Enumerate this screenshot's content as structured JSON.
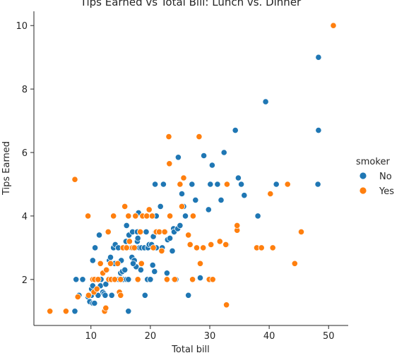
{
  "chart_data": {
    "type": "scatter",
    "title": "Tips Earned vs Total Bill: Lunch vs. Dinner",
    "xlabel": "Total bill",
    "ylabel": "Tips Earned",
    "xlim": [
      0.4,
      53.3
    ],
    "ylim": [
      0.55,
      10.45
    ],
    "xticks": [
      10,
      20,
      30,
      40,
      50
    ],
    "yticks": [
      2,
      4,
      6,
      8,
      10
    ],
    "grid": false,
    "legend": {
      "title": "smoker",
      "placement": "right"
    },
    "series": [
      {
        "name": "No",
        "color": "#1f77b4",
        "points": [
          [
            7.5,
            2.0
          ],
          [
            8.0,
            1.5
          ],
          [
            8.6,
            2.0
          ],
          [
            9.5,
            1.45
          ],
          [
            9.8,
            1.3
          ],
          [
            10.1,
            1.5
          ],
          [
            10.1,
            1.7
          ],
          [
            10.3,
            1.25
          ],
          [
            10.3,
            1.8
          ],
          [
            10.3,
            2.6
          ],
          [
            10.6,
            1.25
          ],
          [
            10.8,
            2.0
          ],
          [
            11.2,
            1.5
          ],
          [
            11.6,
            1.8
          ],
          [
            11.7,
            2.0
          ],
          [
            12.0,
            1.6
          ],
          [
            12.2,
            1.55
          ],
          [
            12.4,
            1.5
          ],
          [
            12.5,
            1.85
          ],
          [
            12.7,
            2.3
          ],
          [
            13.0,
            2.0
          ],
          [
            13.1,
            2.6
          ],
          [
            13.3,
            2.5
          ],
          [
            13.3,
            2.7
          ],
          [
            13.4,
            2.0
          ],
          [
            13.5,
            1.5
          ],
          [
            13.8,
            3.0
          ],
          [
            14.0,
            2.5
          ],
          [
            14.1,
            3.1
          ],
          [
            14.5,
            2.0
          ],
          [
            14.6,
            3.0
          ],
          [
            14.7,
            2.0
          ],
          [
            15.0,
            2.2
          ],
          [
            15.1,
            2.6
          ],
          [
            15.3,
            2.25
          ],
          [
            15.4,
            2.0
          ],
          [
            15.5,
            3.0
          ],
          [
            15.7,
            2.3
          ],
          [
            15.9,
            3.2
          ],
          [
            16.0,
            2.0
          ],
          [
            16.0,
            3.7
          ],
          [
            16.3,
            2.0
          ],
          [
            16.4,
            3.4
          ],
          [
            16.8,
            3.0
          ],
          [
            16.9,
            2.7
          ],
          [
            17.0,
            3.5
          ],
          [
            17.3,
            2.6
          ],
          [
            17.5,
            3.0
          ],
          [
            17.6,
            2.4
          ],
          [
            17.8,
            3.2
          ],
          [
            17.9,
            3.3
          ],
          [
            18.0,
            4.1
          ],
          [
            18.2,
            3.0
          ],
          [
            18.3,
            3.5
          ],
          [
            18.4,
            2.3
          ],
          [
            18.5,
            3.0
          ],
          [
            18.7,
            4.0
          ],
          [
            19.0,
            3.0
          ],
          [
            19.1,
            1.5
          ],
          [
            19.3,
            3.5
          ],
          [
            19.5,
            2.0
          ],
          [
            19.6,
            3.0
          ],
          [
            19.8,
            3.1
          ],
          [
            20.0,
            2.0
          ],
          [
            20.2,
            3.1
          ],
          [
            20.3,
            4.0
          ],
          [
            20.4,
            2.45
          ],
          [
            20.5,
            3.35
          ],
          [
            20.7,
            2.25
          ],
          [
            20.8,
            5.0
          ],
          [
            20.9,
            3.5
          ],
          [
            21.0,
            3.0
          ],
          [
            21.5,
            3.5
          ],
          [
            21.7,
            4.3
          ],
          [
            22.0,
            3.0
          ],
          [
            22.2,
            5.0
          ],
          [
            22.5,
            3.5
          ],
          [
            22.8,
            2.2
          ],
          [
            22.9,
            3.25
          ],
          [
            23.3,
            3.3
          ],
          [
            23.7,
            2.9
          ],
          [
            23.9,
            3.6
          ],
          [
            24.0,
            3.5
          ],
          [
            24.3,
            2.0
          ],
          [
            24.6,
            3.6
          ],
          [
            24.7,
            5.85
          ],
          [
            25.0,
            3.7
          ],
          [
            25.3,
            4.7
          ],
          [
            25.6,
            4.3
          ],
          [
            25.9,
            4.0
          ],
          [
            26.4,
            1.5
          ],
          [
            27.0,
            5.0
          ],
          [
            27.6,
            4.5
          ],
          [
            28.4,
            2.05
          ],
          [
            29.0,
            5.9
          ],
          [
            29.8,
            4.2
          ],
          [
            30.1,
            5.0
          ],
          [
            30.4,
            5.6
          ],
          [
            31.3,
            5.0
          ],
          [
            31.9,
            4.5
          ],
          [
            32.4,
            6.0
          ],
          [
            32.8,
            3.1
          ],
          [
            34.3,
            6.7
          ],
          [
            34.8,
            5.2
          ],
          [
            35.3,
            5.0
          ],
          [
            35.8,
            4.65
          ],
          [
            38.1,
            4.0
          ],
          [
            39.4,
            7.6
          ],
          [
            41.2,
            5.0
          ],
          [
            48.2,
            5.0
          ],
          [
            48.3,
            6.7
          ],
          [
            48.3,
            9.0
          ],
          [
            16.3,
            1.0
          ],
          [
            7.3,
            1.0
          ],
          [
            10.7,
            3.0
          ],
          [
            11.4,
            3.4
          ],
          [
            17.1,
            2.5
          ],
          [
            17.8,
            3.5
          ],
          [
            21.0,
            4.0
          ],
          [
            22.5,
            3.5
          ]
        ]
      },
      {
        "name": "Yes",
        "color": "#ff7f0e",
        "points": [
          [
            3.1,
            1.0
          ],
          [
            5.8,
            1.0
          ],
          [
            7.3,
            5.15
          ],
          [
            7.8,
            1.45
          ],
          [
            9.5,
            4.0
          ],
          [
            9.6,
            1.5
          ],
          [
            10.3,
            2.0
          ],
          [
            10.5,
            1.6
          ],
          [
            10.6,
            2.0
          ],
          [
            11.0,
            1.7
          ],
          [
            11.2,
            2.0
          ],
          [
            11.6,
            2.5
          ],
          [
            12.0,
            2.2
          ],
          [
            12.3,
            1.0
          ],
          [
            12.5,
            1.1
          ],
          [
            12.6,
            2.3
          ],
          [
            12.9,
            3.5
          ],
          [
            13.0,
            2.0
          ],
          [
            13.3,
            2.5
          ],
          [
            13.4,
            2.0
          ],
          [
            13.8,
            4.0
          ],
          [
            14.0,
            2.0
          ],
          [
            14.5,
            2.5
          ],
          [
            14.8,
            1.6
          ],
          [
            15.0,
            1.5
          ],
          [
            15.0,
            2.0
          ],
          [
            15.4,
            3.0
          ],
          [
            15.7,
            4.3
          ],
          [
            16.0,
            3.0
          ],
          [
            16.3,
            4.0
          ],
          [
            16.5,
            3.2
          ],
          [
            17.0,
            3.0
          ],
          [
            17.3,
            3.0
          ],
          [
            17.5,
            4.0
          ],
          [
            17.9,
            2.0
          ],
          [
            18.3,
            3.5
          ],
          [
            18.7,
            4.0
          ],
          [
            19.4,
            4.0
          ],
          [
            19.8,
            4.2
          ],
          [
            20.3,
            4.0
          ],
          [
            20.5,
            3.0
          ],
          [
            21.0,
            3.5
          ],
          [
            21.5,
            3.5
          ],
          [
            21.9,
            2.9
          ],
          [
            22.4,
            3.5
          ],
          [
            22.8,
            2.0
          ],
          [
            23.1,
            6.5
          ],
          [
            23.2,
            5.65
          ],
          [
            23.3,
            4.0
          ],
          [
            24.0,
            2.0
          ],
          [
            24.1,
            2.0
          ],
          [
            25.3,
            4.3
          ],
          [
            25.6,
            5.2
          ],
          [
            26.4,
            3.4
          ],
          [
            26.7,
            3.1
          ],
          [
            27.1,
            2.0
          ],
          [
            27.2,
            4.0
          ],
          [
            27.8,
            3.0
          ],
          [
            28.2,
            6.5
          ],
          [
            28.4,
            2.5
          ],
          [
            28.9,
            3.0
          ],
          [
            29.9,
            2.0
          ],
          [
            30.2,
            3.1
          ],
          [
            30.5,
            2.0
          ],
          [
            31.7,
            3.2
          ],
          [
            32.7,
            3.1
          ],
          [
            32.8,
            1.2
          ],
          [
            32.9,
            5.0
          ],
          [
            34.6,
            3.55
          ],
          [
            34.6,
            3.7
          ],
          [
            37.9,
            3.0
          ],
          [
            38.7,
            3.0
          ],
          [
            40.2,
            4.7
          ],
          [
            40.6,
            3.0
          ],
          [
            43.1,
            5.0
          ],
          [
            44.3,
            2.5
          ],
          [
            45.4,
            3.5
          ],
          [
            50.8,
            10.0
          ],
          [
            25.0,
            5.0
          ],
          [
            18.5,
            2.5
          ]
        ]
      }
    ]
  }
}
